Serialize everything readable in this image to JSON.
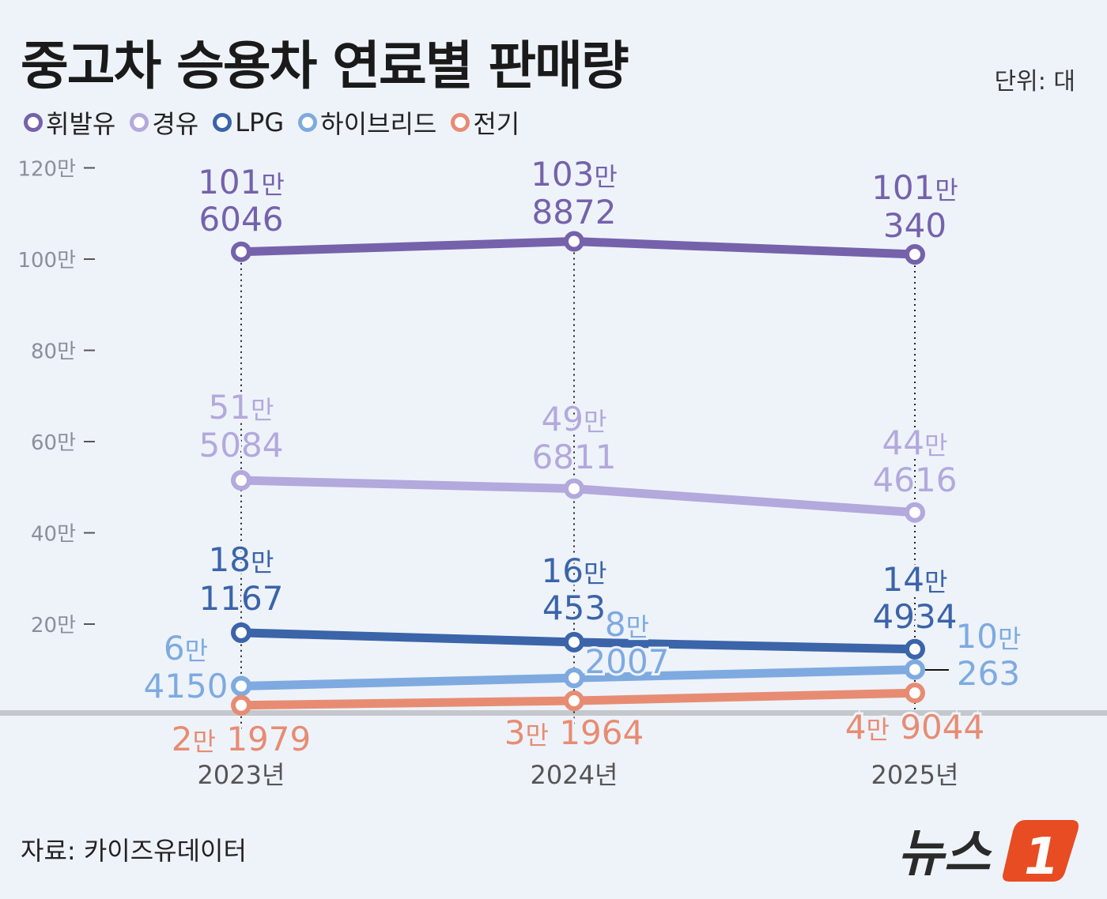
{
  "title": "중고차 승용차 연료별 판매량",
  "unit": "단위: 대",
  "source": "자료: 카이즈유데이터",
  "logo_text": "뉴스1",
  "chart_data": {
    "type": "line",
    "title": "중고차 승용차 연료별 판매량",
    "categories": [
      "2023년",
      "2024년",
      "2025년"
    ],
    "ylim": [
      0,
      1200000
    ],
    "yticks": [
      {
        "v": 200000,
        "label": "20만"
      },
      {
        "v": 400000,
        "label": "40만"
      },
      {
        "v": 600000,
        "label": "60만"
      },
      {
        "v": 800000,
        "label": "80만"
      },
      {
        "v": 1000000,
        "label": "100만"
      },
      {
        "v": 1200000,
        "label": "120만"
      }
    ],
    "legend_position": "top-left",
    "series": [
      {
        "name": "휘발유",
        "color": "#7562ab",
        "values": [
          1016046,
          1038872,
          1010340
        ],
        "labels": [
          [
            "101만",
            "6046"
          ],
          [
            "103만",
            "8872"
          ],
          [
            "101만",
            "340"
          ]
        ]
      },
      {
        "name": "경유",
        "color": "#b3a9dc",
        "values": [
          515084,
          496811,
          444616
        ],
        "labels": [
          [
            "51만",
            "5084"
          ],
          [
            "49만",
            "6811"
          ],
          [
            "44만",
            "4616"
          ]
        ]
      },
      {
        "name": "LPG",
        "color": "#3b64a9",
        "values": [
          181167,
          160453,
          144934
        ],
        "labels": [
          [
            "18만",
            "1167"
          ],
          [
            "16만",
            "453"
          ],
          [
            "14만",
            "4934"
          ]
        ]
      },
      {
        "name": "하이브리드",
        "color": "#7eaae0",
        "values": [
          64150,
          82007,
          100263
        ],
        "labels": [
          [
            "6만",
            "4150"
          ],
          [
            "8만",
            "2007"
          ],
          [
            "10만",
            "263"
          ]
        ]
      },
      {
        "name": "전기",
        "color": "#e78c73",
        "values": [
          21979,
          31964,
          49044
        ],
        "labels": [
          [
            "2만 1979"
          ],
          [
            "3만 1964"
          ],
          [
            "4만 9044"
          ]
        ]
      }
    ]
  }
}
